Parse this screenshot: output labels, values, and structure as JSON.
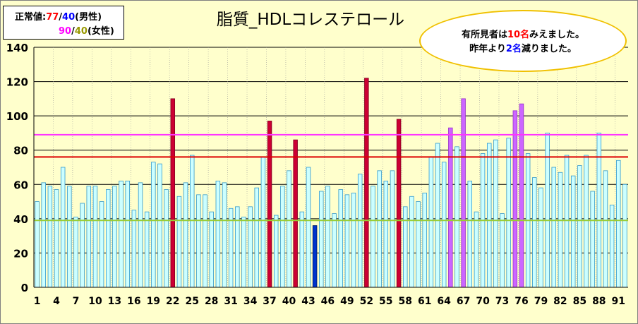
{
  "legend": {
    "label": "正常値:",
    "male_upper": "77",
    "male_lower": "40",
    "male_suffix": "(男性)",
    "female_upper": "90",
    "female_lower": "40",
    "female_suffix": "(女性)",
    "slash": "/"
  },
  "title": "脂質_HDLコレステロール",
  "note": {
    "line1_prefix": "有所見者は",
    "line1_count": "10名",
    "line1_suffix": "みえました。",
    "line2_prefix": "昨年より",
    "line2_count": "2名",
    "line2_suffix": "減りました。"
  },
  "colors": {
    "background": "#ffffcc",
    "normal_bar": "#ccffff",
    "normal_edge": "#3399cc",
    "male_high": "#cc0033",
    "female_high": "#cc66ff",
    "low_bar": "#0033cc",
    "male_upper_line": "#dd0000",
    "female_upper_line": "#ff33ff",
    "lower_line": "#99cc33",
    "accent_red": "#ff0000",
    "accent_blue": "#0000ff",
    "accent_pink": "#ff00ff",
    "accent_olive": "#999900",
    "note_border": "#f0c000"
  },
  "chart_data": {
    "type": "bar",
    "title": "脂質_HDLコレステロール",
    "xlabel": "",
    "ylabel": "",
    "ylim": [
      0,
      140
    ],
    "yticks": [
      0,
      20,
      40,
      60,
      80,
      100,
      120,
      140
    ],
    "xtick_labels": [
      "1",
      "4",
      "7",
      "10",
      "13",
      "16",
      "19",
      "22",
      "25",
      "28",
      "31",
      "34",
      "37",
      "40",
      "43",
      "46",
      "49",
      "52",
      "55",
      "58",
      "61",
      "64",
      "67",
      "70",
      "73",
      "76",
      "79",
      "82",
      "85",
      "88",
      "91"
    ],
    "grid": true,
    "reference_lines": [
      {
        "value": 89,
        "color": "#ff33ff"
      },
      {
        "value": 76,
        "color": "#dd0000"
      },
      {
        "value": 39,
        "color": "#99cc33"
      }
    ],
    "x": [
      1,
      2,
      3,
      4,
      5,
      6,
      7,
      8,
      9,
      10,
      11,
      12,
      13,
      14,
      15,
      16,
      17,
      18,
      19,
      20,
      21,
      22,
      23,
      24,
      25,
      26,
      27,
      28,
      29,
      30,
      31,
      32,
      33,
      34,
      35,
      36,
      37,
      38,
      39,
      40,
      41,
      42,
      43,
      44,
      45,
      46,
      47,
      48,
      49,
      50,
      51,
      52,
      53,
      54,
      55,
      56,
      57,
      58,
      59,
      60,
      61,
      62,
      63,
      64,
      65,
      66,
      67,
      68,
      69,
      70,
      71,
      72,
      73,
      74,
      75,
      76,
      77,
      78,
      79,
      80,
      81,
      82,
      83,
      84,
      85,
      86,
      87,
      88,
      89,
      90,
      91,
      92
    ],
    "values": [
      50,
      61,
      59,
      57,
      70,
      59,
      41,
      49,
      59,
      59,
      50,
      57,
      59,
      62,
      62,
      45,
      61,
      44,
      73,
      72,
      57,
      110,
      53,
      61,
      77,
      54,
      54,
      44,
      62,
      61,
      46,
      47,
      41,
      47,
      58,
      76,
      97,
      42,
      59,
      68,
      86,
      44,
      70,
      36,
      56,
      59,
      43,
      57,
      54,
      55,
      66,
      122,
      59,
      68,
      62,
      68,
      98,
      47,
      53,
      50,
      55,
      76,
      84,
      73,
      93,
      82,
      110,
      62,
      44,
      78,
      84,
      86,
      43,
      87,
      103,
      107,
      78,
      64,
      58,
      90,
      70,
      67,
      77,
      65,
      71,
      77,
      56,
      90,
      68,
      48,
      74,
      60
    ],
    "categories_by_index": [
      "n",
      "n",
      "n",
      "n",
      "n",
      "n",
      "n",
      "n",
      "n",
      "n",
      "n",
      "n",
      "n",
      "n",
      "n",
      "n",
      "n",
      "n",
      "n",
      "n",
      "n",
      "mh",
      "n",
      "n",
      "n",
      "n",
      "n",
      "n",
      "n",
      "n",
      "n",
      "n",
      "n",
      "n",
      "n",
      "n",
      "mh",
      "n",
      "n",
      "n",
      "mh",
      "n",
      "n",
      "low",
      "n",
      "n",
      "n",
      "n",
      "n",
      "n",
      "n",
      "mh",
      "n",
      "n",
      "n",
      "n",
      "mh",
      "n",
      "n",
      "n",
      "n",
      "n",
      "n",
      "n",
      "fh",
      "n",
      "fh",
      "n",
      "n",
      "n",
      "n",
      "n",
      "n",
      "n",
      "fh",
      "fh",
      "n",
      "n",
      "n",
      "n",
      "n",
      "n",
      "n",
      "n",
      "n",
      "n",
      "n",
      "n",
      "n",
      "n",
      "n",
      "n"
    ]
  }
}
